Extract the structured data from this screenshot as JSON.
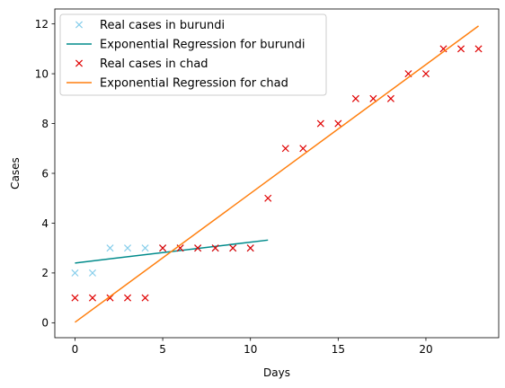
{
  "chart_data": {
    "type": "scatter",
    "title": "",
    "xlabel": "Days",
    "ylabel": "Cases",
    "xlim": [
      -1.15,
      24.15
    ],
    "ylim": [
      -0.6,
      12.6
    ],
    "xticks": [
      0,
      5,
      10,
      15,
      20
    ],
    "yticks": [
      0,
      2,
      4,
      6,
      8,
      10,
      12
    ],
    "grid": false,
    "legend_position": "upper-left",
    "series": [
      {
        "name": "Real cases in burundi",
        "kind": "scatter",
        "marker": "x",
        "color": "#87ceeb",
        "x": [
          0,
          1,
          2,
          3,
          4,
          5,
          6,
          7,
          8,
          9,
          10
        ],
        "y": [
          2,
          2,
          3,
          3,
          3,
          3,
          3,
          3,
          3,
          3,
          3
        ]
      },
      {
        "name": "Exponential Regression for burundi",
        "kind": "line",
        "color": "#008b8b",
        "x": [
          0,
          11
        ],
        "y": [
          2.4,
          3.32
        ]
      },
      {
        "name": "Real cases in chad",
        "kind": "scatter",
        "marker": "x",
        "color": "#e00000",
        "x": [
          0,
          1,
          2,
          3,
          4,
          5,
          6,
          7,
          8,
          9,
          10,
          11,
          12,
          13,
          14,
          15,
          16,
          17,
          18,
          19,
          20,
          21,
          22,
          23
        ],
        "y": [
          1,
          1,
          1,
          1,
          1,
          3,
          3,
          3,
          3,
          3,
          3,
          5,
          7,
          7,
          8,
          8,
          9,
          9,
          9,
          10,
          10,
          11,
          11,
          11
        ]
      },
      {
        "name": "Exponential Regression for chad",
        "kind": "line",
        "color": "#ff7f0e",
        "x": [
          0,
          23
        ],
        "y": [
          0.02,
          11.92
        ]
      }
    ]
  }
}
